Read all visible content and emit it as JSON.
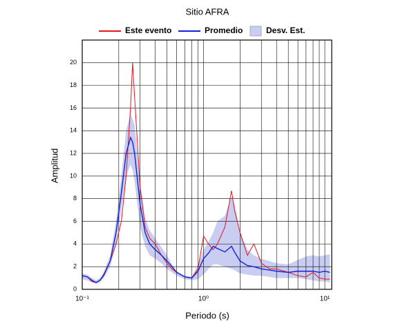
{
  "chart_data": {
    "type": "line",
    "title": "Sitio AFRA",
    "x_label": "Periodo (s)",
    "y_label": "Amplitud",
    "x_scale": "log",
    "grid": true,
    "legend": "top",
    "xlim": [
      0.1,
      11.4
    ],
    "ylim": [
      0,
      22
    ],
    "xticks": [
      {
        "value": 0.1,
        "label": "10⁻¹"
      },
      {
        "value": 1,
        "label": "10⁰"
      },
      {
        "value": 10,
        "label": "10¹"
      }
    ],
    "yticks": [
      0,
      2,
      4,
      6,
      8,
      10,
      12,
      14,
      16,
      18,
      20
    ],
    "x": [
      0.1,
      0.11,
      0.12,
      0.13,
      0.14,
      0.15,
      0.17,
      0.19,
      0.21,
      0.23,
      0.25,
      0.26,
      0.27,
      0.3,
      0.33,
      0.36,
      0.4,
      0.45,
      0.5,
      0.55,
      0.6,
      0.7,
      0.8,
      0.9,
      1.0,
      1.1,
      1.2,
      1.3,
      1.5,
      1.7,
      1.8,
      2.0,
      2.3,
      2.6,
      3.0,
      3.5,
      4,
      5,
      6,
      7,
      8,
      9,
      10,
      11
    ],
    "band": {
      "name": "Desv. Est.",
      "color": "#c9cdf2",
      "values_low": [
        0.9,
        0.8,
        0.6,
        0.5,
        0.6,
        1.0,
        2.0,
        4.0,
        7,
        10,
        11,
        10.5,
        9.5,
        5.5,
        3.8,
        3,
        2.7,
        2.3,
        1.8,
        1.5,
        1.2,
        0.9,
        0.8,
        0.9,
        1.3,
        1.8,
        2.2,
        2.2,
        2.0,
        1.8,
        1.7,
        1.4,
        1.3,
        1.2,
        1.2,
        1.1,
        1.0,
        1.0,
        1.0,
        0.9,
        0.8,
        0.7,
        0.7,
        0.6
      ],
      "values_high": [
        1.4,
        1.3,
        1.0,
        0.8,
        1.0,
        1.5,
        3.0,
        6.0,
        10,
        14,
        15.5,
        15,
        14.5,
        9.5,
        6.3,
        5.2,
        4.5,
        3.7,
        3.0,
        2.2,
        1.6,
        1.2,
        1.1,
        2.2,
        3.5,
        4.2,
        5.0,
        6.0,
        6.5,
        8.2,
        7.5,
        5.0,
        3.5,
        3.0,
        2.7,
        2.5,
        2.3,
        2.2,
        2.6,
        2.9,
        3.0,
        2.9,
        3.0,
        3.1
      ]
    },
    "series": [
      {
        "name": "Este evento",
        "color": "#e8141c",
        "values": [
          1.2,
          1.1,
          0.7,
          0.6,
          0.8,
          1.3,
          2.5,
          4,
          6,
          10,
          16,
          20,
          17,
          9,
          5.5,
          4.5,
          4,
          3,
          2.3,
          1.8,
          1.5,
          1.1,
          1.0,
          1.8,
          4.7,
          4,
          3.5,
          4,
          5.5,
          8.7,
          7,
          5,
          3,
          4,
          2.3,
          1.8,
          1.8,
          1.5,
          1.2,
          1.1,
          1.5,
          1.0,
          0.9,
          0.9
        ]
      },
      {
        "name": "Promedio",
        "color": "#1420d8",
        "values": [
          1.2,
          1.1,
          0.8,
          0.6,
          0.8,
          1.2,
          2.5,
          5,
          8.5,
          12,
          13.4,
          13,
          12,
          7.5,
          5,
          4,
          3.5,
          3,
          2.5,
          2,
          1.5,
          1.1,
          1.0,
          1.6,
          2.7,
          3.2,
          3.8,
          3.6,
          3.3,
          3.8,
          3.3,
          2.5,
          2.1,
          2.0,
          1.8,
          1.7,
          1.6,
          1.5,
          1.6,
          1.6,
          1.6,
          1.5,
          1.6,
          1.5
        ]
      }
    ]
  }
}
